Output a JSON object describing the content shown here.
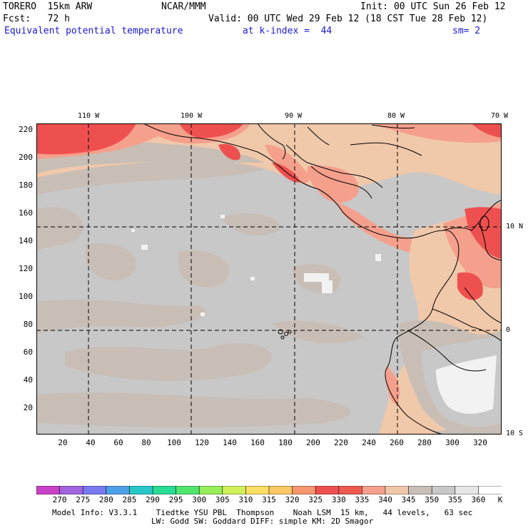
{
  "header": {
    "model": "TORERO  15km ARW",
    "center": "NCAR/MMM",
    "init": "Init: 00 UTC Sun 26 Feb 12",
    "fcst": "Fcst:   72 h",
    "valid": "Valid: 00 UTC Wed 29 Feb 12 (18 CST Tue 28 Feb 12)",
    "field": "Equivalent potential temperature",
    "level": "at k-index =  44",
    "smooth": "sm= 2"
  },
  "map": {
    "lon_labels": [
      "110 W",
      "100 W",
      "90 W",
      "80 W",
      "70 W"
    ],
    "lat_labels": [
      "10 N",
      "0",
      "10 S"
    ],
    "y_ticks": [
      "220",
      "200",
      "180",
      "160",
      "140",
      "120",
      "100",
      "80",
      "60",
      "40",
      "20"
    ],
    "x_ticks": [
      "20",
      "40",
      "60",
      "80",
      "100",
      "120",
      "140",
      "160",
      "180",
      "200",
      "220",
      "240",
      "260",
      "280",
      "300",
      "320"
    ]
  },
  "colorbar": {
    "labels": [
      "270",
      "275",
      "280",
      "285",
      "290",
      "295",
      "300",
      "305",
      "310",
      "315",
      "320",
      "325",
      "330",
      "335",
      "340",
      "345",
      "350",
      "355",
      "360"
    ],
    "unit": "K",
    "colors": [
      "#c840c8",
      "#a064dc",
      "#7878f0",
      "#4ca0e8",
      "#28c8c8",
      "#28dc96",
      "#50e66e",
      "#96ee5a",
      "#d2f05a",
      "#fade64",
      "#fac864",
      "#f5966e",
      "#ee5050",
      "#ee5a50",
      "#f5a08c",
      "#f0c8aa",
      "#c8c0b8",
      "#c8c8c8",
      "#e6e6e6",
      "#ffffff"
    ]
  },
  "palette": {
    "gray": "#c8c8c8",
    "taupe": "#c8beb6",
    "peach": "#f0c8aa",
    "salmon": "#f5a08c",
    "red": "#ee5050",
    "white": "#f2f2f2"
  },
  "footer": {
    "line1": "Model Info: V3.3.1    Tiedtke YSU PBL  Thompson    Noah LSM  15 km,   44 levels,   63 sec",
    "line2": "LW: Godd SW: Goddard DIFF: simple KM: 2D Smagor"
  }
}
